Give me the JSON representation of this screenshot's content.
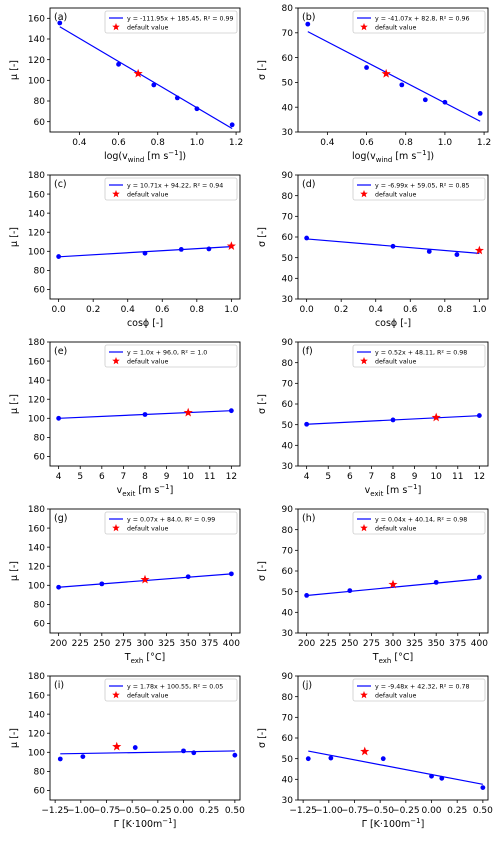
{
  "colors": {
    "fit": "#0000ff",
    "points": "#0000ff",
    "default_marker": "#ff0000",
    "axes": "#000000"
  },
  "chart_data": [
    {
      "panel": "(a)",
      "type": "scatter",
      "xlabel_main": "log(v",
      "xlabel_sub": "wind",
      "xlabel_rest": " [m s",
      "xlabel_sup": "−1",
      "xlabel_end": "])",
      "ylabel": "μ [-]",
      "xlim": [
        0.25,
        1.22
      ],
      "ylim": [
        50,
        170
      ],
      "xticks": [
        0.4,
        0.6,
        0.8,
        1.0,
        1.2
      ],
      "xticklabels": [
        "0.4",
        "0.6",
        "0.8",
        "1.0",
        "1.2"
      ],
      "yticks": [
        60,
        80,
        100,
        120,
        140,
        160
      ],
      "yticklabels": [
        "60",
        "80",
        "100",
        "120",
        "140",
        "160"
      ],
      "points": [
        [
          0.3,
          155.5
        ],
        [
          0.6,
          115.5
        ],
        [
          0.78,
          95.5
        ],
        [
          0.9,
          83
        ],
        [
          1.0,
          72.5
        ],
        [
          1.18,
          57
        ]
      ],
      "default": [
        0.7,
        106.5
      ],
      "fit": {
        "slope": -111.95,
        "intercept": 185.45,
        "x_range": [
          0.3,
          1.18
        ]
      },
      "legend": {
        "fit_label": "y = -111.95x + 185.45, R² = 0.99",
        "default_label": "default value"
      }
    },
    {
      "panel": "(b)",
      "type": "scatter",
      "xlabel_main": "log(v",
      "xlabel_sub": "wind",
      "xlabel_rest": " [m s",
      "xlabel_sup": "−1",
      "xlabel_end": "])",
      "ylabel": "σ [-]",
      "xlim": [
        0.25,
        1.22
      ],
      "ylim": [
        30,
        80
      ],
      "xticks": [
        0.4,
        0.6,
        0.8,
        1.0,
        1.2
      ],
      "xticklabels": [
        "0.4",
        "0.6",
        "0.8",
        "1.0",
        "1.2"
      ],
      "yticks": [
        30,
        40,
        50,
        60,
        70,
        80
      ],
      "yticklabels": [
        "30",
        "40",
        "50",
        "60",
        "70",
        "80"
      ],
      "points": [
        [
          0.3,
          73.5
        ],
        [
          0.6,
          56
        ],
        [
          0.78,
          49
        ],
        [
          0.9,
          43
        ],
        [
          1.0,
          42
        ],
        [
          1.18,
          37.5
        ]
      ],
      "default": [
        0.7,
        53.5
      ],
      "fit": {
        "slope": -41.07,
        "intercept": 82.8,
        "x_range": [
          0.3,
          1.18
        ]
      },
      "legend": {
        "fit_label": "y = -41.07x + 82.8, R² = 0.96",
        "default_label": "default value"
      }
    },
    {
      "panel": "(c)",
      "type": "scatter",
      "xlabel_main": "cosϕ [-]",
      "xlabel_sub": "",
      "xlabel_rest": "",
      "xlabel_sup": "",
      "xlabel_end": "",
      "ylabel": "μ [-]",
      "xlim": [
        -0.05,
        1.05
      ],
      "ylim": [
        50,
        180
      ],
      "xticks": [
        0.0,
        0.2,
        0.4,
        0.6,
        0.8,
        1.0
      ],
      "xticklabels": [
        "0.0",
        "0.2",
        "0.4",
        "0.6",
        "0.8",
        "1.0"
      ],
      "yticks": [
        60,
        80,
        100,
        120,
        140,
        160,
        180
      ],
      "yticklabels": [
        "60",
        "80",
        "100",
        "120",
        "140",
        "160",
        "180"
      ],
      "points": [
        [
          0.0,
          94.5
        ],
        [
          0.5,
          98
        ],
        [
          0.71,
          102
        ],
        [
          0.87,
          102.5
        ]
      ],
      "default": [
        1.0,
        105.5
      ],
      "fit": {
        "slope": 10.71,
        "intercept": 94.22,
        "x_range": [
          0.0,
          1.0
        ]
      },
      "legend": {
        "fit_label": "y = 10.71x + 94.22, R² = 0.94",
        "default_label": "default value"
      }
    },
    {
      "panel": "(d)",
      "type": "scatter",
      "xlabel_main": "cosϕ [-]",
      "xlabel_sub": "",
      "xlabel_rest": "",
      "xlabel_sup": "",
      "xlabel_end": "",
      "ylabel": "σ [-]",
      "xlim": [
        -0.05,
        1.05
      ],
      "ylim": [
        30,
        90
      ],
      "xticks": [
        0.0,
        0.2,
        0.4,
        0.6,
        0.8,
        1.0
      ],
      "xticklabels": [
        "0.0",
        "0.2",
        "0.4",
        "0.6",
        "0.8",
        "1.0"
      ],
      "yticks": [
        30,
        40,
        50,
        60,
        70,
        80,
        90
      ],
      "yticklabels": [
        "30",
        "40",
        "50",
        "60",
        "70",
        "80",
        "90"
      ],
      "points": [
        [
          0.0,
          59.5
        ],
        [
          0.5,
          55.5
        ],
        [
          0.71,
          53
        ],
        [
          0.87,
          51.5
        ]
      ],
      "default": [
        1.0,
        53.5
      ],
      "fit": {
        "slope": -6.99,
        "intercept": 59.05,
        "x_range": [
          0.0,
          1.0
        ]
      },
      "legend": {
        "fit_label": "y = -6.99x + 59.05, R² = 0.85",
        "default_label": "default value"
      }
    },
    {
      "panel": "(e)",
      "type": "scatter",
      "xlabel_main": "v",
      "xlabel_sub": "exit",
      "xlabel_rest": " [m s",
      "xlabel_sup": "−1",
      "xlabel_end": "]",
      "ylabel": "μ [-]",
      "xlim": [
        3.6,
        12.4
      ],
      "ylim": [
        50,
        180
      ],
      "xticks": [
        4,
        5,
        6,
        7,
        8,
        9,
        10,
        11,
        12
      ],
      "xticklabels": [
        "4",
        "5",
        "6",
        "7",
        "8",
        "9",
        "10",
        "11",
        "12"
      ],
      "yticks": [
        60,
        80,
        100,
        120,
        140,
        160,
        180
      ],
      "yticklabels": [
        "60",
        "80",
        "100",
        "120",
        "140",
        "160",
        "180"
      ],
      "points": [
        [
          4,
          100
        ],
        [
          8,
          104
        ],
        [
          12,
          108
        ]
      ],
      "default": [
        10,
        106
      ],
      "fit": {
        "slope": 1.0,
        "intercept": 96.0,
        "x_range": [
          4,
          12
        ]
      },
      "legend": {
        "fit_label": "y = 1.0x + 96.0, R² = 1.0",
        "default_label": "default value"
      }
    },
    {
      "panel": "(f)",
      "type": "scatter",
      "xlabel_main": "v",
      "xlabel_sub": "exit",
      "xlabel_rest": " [m s",
      "xlabel_sup": "−1",
      "xlabel_end": "]",
      "ylabel": "σ [-]",
      "xlim": [
        3.6,
        12.4
      ],
      "ylim": [
        30,
        90
      ],
      "xticks": [
        4,
        5,
        6,
        7,
        8,
        9,
        10,
        11,
        12
      ],
      "xticklabels": [
        "4",
        "5",
        "6",
        "7",
        "8",
        "9",
        "10",
        "11",
        "12"
      ],
      "yticks": [
        30,
        40,
        50,
        60,
        70,
        80,
        90
      ],
      "yticklabels": [
        "30",
        "40",
        "50",
        "60",
        "70",
        "80",
        "90"
      ],
      "points": [
        [
          4,
          50.2
        ],
        [
          8,
          52.3
        ],
        [
          12,
          54.4
        ]
      ],
      "default": [
        10,
        53.5
      ],
      "fit": {
        "slope": 0.52,
        "intercept": 48.11,
        "x_range": [
          4,
          12
        ]
      },
      "legend": {
        "fit_label": "y = 0.52x + 48.11, R² = 0.98",
        "default_label": "default value"
      }
    },
    {
      "panel": "(g)",
      "type": "scatter",
      "xlabel_main": "T",
      "xlabel_sub": "exh",
      "xlabel_rest": " [°C]",
      "xlabel_sup": "",
      "xlabel_end": "",
      "ylabel": "μ [-]",
      "xlim": [
        190,
        410
      ],
      "ylim": [
        50,
        180
      ],
      "xticks": [
        200,
        225,
        250,
        275,
        300,
        325,
        350,
        375,
        400
      ],
      "xticklabels": [
        "200",
        "225",
        "250",
        "275",
        "300",
        "325",
        "350",
        "375",
        "400"
      ],
      "yticks": [
        60,
        80,
        100,
        120,
        140,
        160,
        180
      ],
      "yticklabels": [
        "60",
        "80",
        "100",
        "120",
        "140",
        "160",
        "180"
      ],
      "points": [
        [
          200,
          98
        ],
        [
          250,
          101.5
        ],
        [
          350,
          109
        ],
        [
          400,
          112
        ]
      ],
      "default": [
        300,
        106
      ],
      "fit": {
        "slope": 0.07,
        "intercept": 84.0,
        "x_range": [
          200,
          400
        ]
      },
      "legend": {
        "fit_label": "y = 0.07x + 84.0, R² = 0.99",
        "default_label": "default value"
      }
    },
    {
      "panel": "(h)",
      "type": "scatter",
      "xlabel_main": "T",
      "xlabel_sub": "exh",
      "xlabel_rest": " [°C]",
      "xlabel_sup": "",
      "xlabel_end": "",
      "ylabel": "σ [-]",
      "xlim": [
        190,
        410
      ],
      "ylim": [
        30,
        90
      ],
      "xticks": [
        200,
        225,
        250,
        275,
        300,
        325,
        350,
        375,
        400
      ],
      "xticklabels": [
        "200",
        "225",
        "250",
        "275",
        "300",
        "325",
        "350",
        "375",
        "400"
      ],
      "yticks": [
        30,
        40,
        50,
        60,
        70,
        80,
        90
      ],
      "yticklabels": [
        "30",
        "40",
        "50",
        "60",
        "70",
        "80",
        "90"
      ],
      "points": [
        [
          200,
          48.2
        ],
        [
          250,
          50.5
        ],
        [
          350,
          54.5
        ],
        [
          400,
          57
        ]
      ],
      "default": [
        300,
        53.5
      ],
      "fit": {
        "slope": 0.04,
        "intercept": 40.14,
        "x_range": [
          200,
          400
        ]
      },
      "legend": {
        "fit_label": "y = 0.04x + 40.14, R² = 0.98",
        "default_label": "default value"
      }
    },
    {
      "panel": "(i)",
      "type": "scatter",
      "xlabel_main": "Γ [K·100m",
      "xlabel_sub": "",
      "xlabel_rest": "",
      "xlabel_sup": "−1",
      "xlabel_end": "]",
      "ylabel": "μ [-]",
      "xlim": [
        -1.3,
        0.55
      ],
      "ylim": [
        50,
        180
      ],
      "xticks": [
        -1.25,
        -1.0,
        -0.75,
        -0.5,
        -0.25,
        0.0,
        0.25,
        0.5
      ],
      "xticklabels": [
        "−1.25",
        "−1.00",
        "−0.75",
        "−0.50",
        "−0.25",
        "0.00",
        "0.25",
        "0.50"
      ],
      "yticks": [
        60,
        80,
        100,
        120,
        140,
        160,
        180
      ],
      "yticklabels": [
        "60",
        "80",
        "100",
        "120",
        "140",
        "160",
        "180"
      ],
      "points": [
        [
          -1.2,
          93
        ],
        [
          -0.98,
          95.5
        ],
        [
          -0.47,
          105
        ],
        [
          0.0,
          101.5
        ],
        [
          0.1,
          99.5
        ],
        [
          0.5,
          97
        ]
      ],
      "default": [
        -0.65,
        106
      ],
      "fit": {
        "slope": 1.78,
        "intercept": 100.55,
        "x_range": [
          -1.2,
          0.5
        ]
      },
      "legend": {
        "fit_label": "y = 1.78x + 100.55, R² = 0.05",
        "default_label": "default value"
      }
    },
    {
      "panel": "(j)",
      "type": "scatter",
      "xlabel_main": "Γ [K·100m",
      "xlabel_sub": "",
      "xlabel_rest": "",
      "xlabel_sup": "−1",
      "xlabel_end": "]",
      "ylabel": "σ [-]",
      "xlim": [
        -1.3,
        0.55
      ],
      "ylim": [
        30,
        90
      ],
      "xticks": [
        -1.25,
        -1.0,
        -0.75,
        -0.5,
        -0.25,
        0.0,
        0.25,
        0.5
      ],
      "xticklabels": [
        "−1.25",
        "−1.00",
        "−0.75",
        "−0.50",
        "−0.25",
        "0.00",
        "0.25",
        "0.50"
      ],
      "yticks": [
        30,
        40,
        50,
        60,
        70,
        80,
        90
      ],
      "yticklabels": [
        "30",
        "40",
        "50",
        "60",
        "70",
        "80",
        "90"
      ],
      "points": [
        [
          -1.2,
          50
        ],
        [
          -0.98,
          50.3
        ],
        [
          -0.47,
          50
        ],
        [
          0.0,
          41.5
        ],
        [
          0.1,
          40.5
        ],
        [
          0.5,
          36
        ]
      ],
      "default": [
        -0.65,
        53.5
      ],
      "fit": {
        "slope": -9.48,
        "intercept": 42.32,
        "x_range": [
          -1.2,
          0.5
        ]
      },
      "legend": {
        "fit_label": "y = -9.48x + 42.32, R² = 0.78",
        "default_label": "default value"
      }
    }
  ]
}
